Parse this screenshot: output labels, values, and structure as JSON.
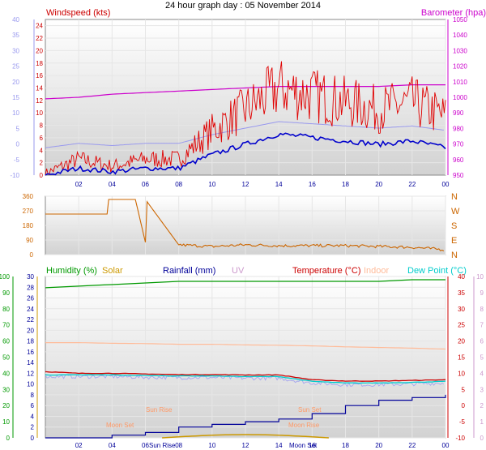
{
  "title": "24 hour graph day : 05 November 2014",
  "time_ticks": [
    "02",
    "04",
    "06",
    "08",
    "10",
    "12",
    "14",
    "16",
    "18",
    "20",
    "22",
    "00"
  ],
  "colors": {
    "windspeed": "#e00000",
    "wind_avg": "#0000cc",
    "wind_ghost": "#9999ee",
    "barometer": "#cc00cc",
    "direction": "#cc6600",
    "humidity": "#009900",
    "solar": "#cc9900",
    "rainfall": "#000099",
    "uv": "#cc99cc",
    "temperature": "#cc0000",
    "indoor": "#ffbb99",
    "dewpoint": "#00cccc",
    "sun_moon": "#ff9966"
  },
  "panel1": {
    "left_label": "Windspeed (kts)",
    "right_label": "Barometer (hpa)",
    "left_ticks": [
      "0",
      "2",
      "4",
      "6",
      "8",
      "10",
      "12",
      "14",
      "16",
      "18",
      "20",
      "22",
      "24"
    ],
    "far_left_ticks": [
      "-10",
      "-5",
      "0",
      "5",
      "10",
      "15",
      "20",
      "25",
      "30",
      "35",
      "40"
    ],
    "right_ticks": [
      "950",
      "960",
      "970",
      "980",
      "990",
      "1000",
      "1010",
      "1020",
      "1030",
      "1040",
      "1050"
    ]
  },
  "panel2": {
    "left_ticks": [
      "0",
      "90",
      "180",
      "270",
      "360"
    ],
    "right_ticks": [
      "N",
      "E",
      "S",
      "W",
      "N"
    ]
  },
  "panel3": {
    "legend": {
      "humidity": "Humidity (%)",
      "solar": "Solar",
      "rainfall": "Rainfall (mm)",
      "uv": "UV",
      "temperature": "Temperature (°C)",
      "indoor": "Indoor",
      "dewpoint": "Dew Point (°C)"
    },
    "humidity_ticks": [
      "0",
      "10",
      "20",
      "30",
      "40",
      "50",
      "60",
      "70",
      "80",
      "90",
      "100"
    ],
    "solar_ticks": [
      "0",
      "2",
      "4",
      "6",
      "8",
      "10",
      "12",
      "14",
      "16",
      "18",
      "20",
      "22",
      "24",
      "26",
      "28",
      "30"
    ],
    "temp_ticks": [
      "-10",
      "-5",
      "0",
      "5",
      "10",
      "15",
      "20",
      "25",
      "30",
      "35",
      "40"
    ],
    "uv_ticks": [
      "0",
      "1",
      "2",
      "3",
      "4",
      "5",
      "6",
      "7",
      "8",
      "9",
      "10"
    ],
    "annotations": {
      "sun_rise": "Sun Rise",
      "sun_set": "Sun Set",
      "moon_set": "Moon Set",
      "moon_rise": "Moon Rise",
      "axis_sun_rise": "Sun Rise",
      "axis_moon_set": "Moon Set"
    }
  },
  "chart_data": [
    {
      "type": "line",
      "title": "24 hour graph day : 05 November 2014",
      "x": [
        "00",
        "02",
        "04",
        "06",
        "08",
        "10",
        "12",
        "14",
        "16",
        "18",
        "20",
        "22",
        "00"
      ],
      "series": [
        {
          "name": "Windspeed (kts)",
          "values": [
            0,
            2,
            1,
            2,
            2,
            6,
            9,
            12,
            11,
            10,
            9,
            10,
            8
          ]
        },
        {
          "name": "Barometer (hpa)",
          "values": [
            999,
            1000,
            1002,
            1003,
            1004,
            1005,
            1006,
            1007,
            1007,
            1007,
            1007,
            1008,
            1008
          ]
        }
      ],
      "ylabel": "Windspeed (kts)",
      "ylim": [
        0,
        25
      ],
      "y2label": "Barometer (hpa)",
      "y2lim": [
        950,
        1050
      ]
    },
    {
      "type": "line",
      "x": [
        "00",
        "02",
        "04",
        "06",
        "08",
        "10",
        "12",
        "14",
        "16",
        "18",
        "20",
        "22",
        "00"
      ],
      "series": [
        {
          "name": "Wind direction",
          "values": [
            250,
            250,
            340,
            340,
            60,
            50,
            60,
            55,
            55,
            55,
            50,
            45,
            30
          ]
        }
      ],
      "ylim": [
        0,
        360
      ]
    },
    {
      "type": "line",
      "x": [
        "00",
        "02",
        "04",
        "06",
        "08",
        "10",
        "12",
        "14",
        "16",
        "18",
        "20",
        "22",
        "00"
      ],
      "series": [
        {
          "name": "Humidity (%)",
          "values": [
            93,
            94,
            95,
            96,
            97,
            97,
            97,
            97,
            97,
            97,
            97,
            98,
            98
          ]
        },
        {
          "name": "Temperature (°C)",
          "values": [
            10.5,
            10,
            10,
            9.8,
            9.6,
            9.6,
            9.5,
            9.5,
            8,
            7.6,
            7.6,
            7.8,
            8.0
          ]
        },
        {
          "name": "Indoor",
          "values": [
            19.5,
            19.5,
            19.3,
            19.2,
            19.0,
            19.0,
            18.8,
            18.7,
            18.5,
            18.2,
            18.0,
            17.8,
            17.5
          ]
        },
        {
          "name": "Dew Point (°C)",
          "values": [
            9.5,
            9.5,
            9.5,
            9.3,
            9.2,
            9.2,
            9.0,
            9.0,
            7.5,
            7.0,
            7.0,
            7.2,
            7.5
          ]
        },
        {
          "name": "Rainfall (mm)",
          "values": [
            0,
            0,
            0.5,
            1.0,
            2.0,
            2.5,
            3.0,
            3.5,
            4.5,
            6.0,
            7.0,
            7.5,
            8.0
          ]
        }
      ],
      "ylabel": "",
      "temperature_range": [
        -10,
        40
      ],
      "humidity_range": [
        0,
        100
      ],
      "rainfall_range": [
        0,
        30
      ]
    }
  ]
}
